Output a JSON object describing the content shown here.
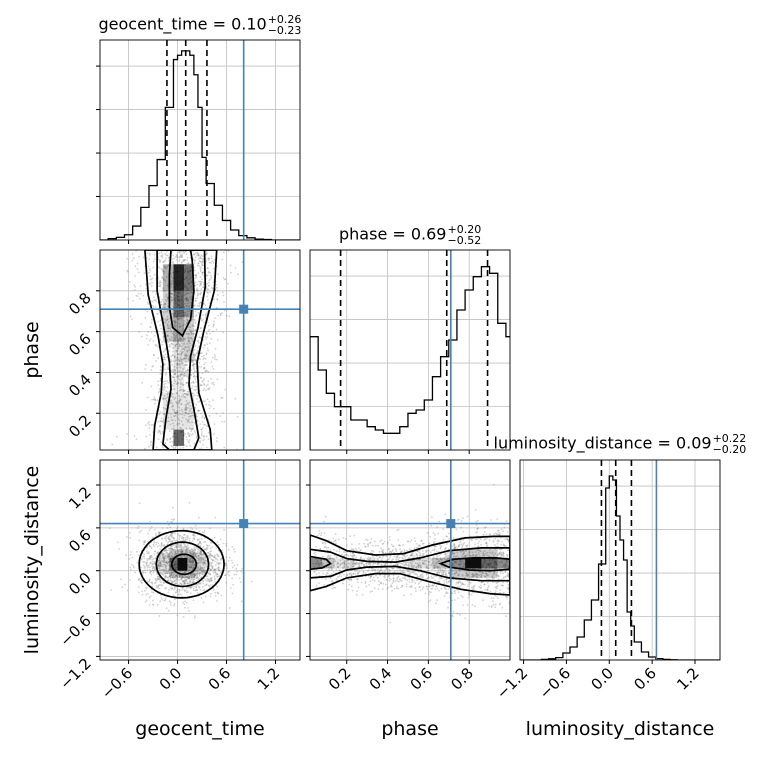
{
  "colors": {
    "truth": "#4682b4",
    "contour": "#000000",
    "grid": "#c0c0c0",
    "scatter": "#808080"
  },
  "chart_data": {
    "type": "corner",
    "parameters": [
      "geocent_time",
      "phase",
      "luminosity_distance"
    ],
    "axis_labels": {
      "geocent_time": "geocent_time",
      "phase": "phase",
      "luminosity_distance": "luminosity_distance"
    },
    "ranges": {
      "geocent_time": [
        -0.95,
        1.5
      ],
      "phase": [
        0.02,
        1.0
      ],
      "luminosity_distance": [
        -1.25,
        1.55
      ]
    },
    "truths": {
      "geocent_time": 0.81,
      "phase": 0.71,
      "luminosity_distance": 0.66
    },
    "titles": [
      {
        "param": "geocent_time",
        "text": "geocent_time = 0.10",
        "plus": "+0.26",
        "minus": "−0.23"
      },
      {
        "param": "phase",
        "text": "phase = 0.69",
        "plus": "+0.20",
        "minus": "−0.52"
      },
      {
        "param": "luminosity_distance",
        "text": "luminosity_distance = 0.09",
        "plus": "+0.22",
        "minus": "−0.20"
      }
    ],
    "quantiles": {
      "geocent_time": [
        -0.13,
        0.1,
        0.36
      ],
      "phase": [
        0.17,
        0.69,
        0.89
      ],
      "luminosity_distance": [
        -0.11,
        0.09,
        0.31
      ]
    },
    "ticks": {
      "geocent_time": {
        "values": [
          -0.6,
          0.0,
          0.6,
          1.2
        ],
        "labels": [
          "−0.6",
          "0.0",
          "0.6",
          "1.2"
        ]
      },
      "phase": {
        "values": [
          0.2,
          0.4,
          0.6,
          0.8
        ],
        "labels": [
          "0.2",
          "0.4",
          "0.6",
          "0.8"
        ]
      },
      "luminosity_distance": {
        "values": [
          -1.2,
          -0.6,
          0.0,
          0.6,
          1.2
        ],
        "labels": [
          "−1.2",
          "−0.6",
          "0.0",
          "0.6",
          "1.2"
        ]
      }
    },
    "histograms": {
      "geocent_time": {
        "edges": [
          -0.95,
          -0.85,
          -0.75,
          -0.65,
          -0.55,
          -0.45,
          -0.35,
          -0.25,
          -0.15,
          -0.05,
          0.0,
          0.05,
          0.1,
          0.15,
          0.2,
          0.25,
          0.3,
          0.35,
          0.45,
          0.55,
          0.65,
          0.75,
          0.85,
          0.95,
          1.05,
          1.15,
          1.5
        ],
        "counts": [
          0.0,
          0.3,
          0.6,
          1.2,
          3.2,
          7.5,
          12.5,
          18.5,
          30.5,
          41.5,
          42.5,
          43.5,
          43.5,
          42.5,
          38,
          30.5,
          19,
          13,
          8,
          4.5,
          2.3,
          1.0,
          0.5,
          0.2,
          0.1,
          0.0
        ],
        "ymax": 46
      },
      "phase": {
        "edges": [
          0.02,
          0.06,
          0.1,
          0.14,
          0.18,
          0.22,
          0.26,
          0.3,
          0.34,
          0.38,
          0.42,
          0.46,
          0.5,
          0.54,
          0.58,
          0.62,
          0.66,
          0.7,
          0.74,
          0.78,
          0.82,
          0.86,
          0.9,
          0.94,
          0.98,
          1.0
        ],
        "counts": [
          34,
          24,
          17,
          13,
          13,
          9,
          9,
          7,
          6,
          5,
          5,
          7,
          11,
          12,
          15,
          22,
          28,
          33,
          42,
          48,
          52,
          55,
          53,
          38,
          34
        ],
        "ymax": 60
      },
      "luminosity_distance": {
        "edges": [
          -1.25,
          -0.95,
          -0.85,
          -0.75,
          -0.65,
          -0.55,
          -0.45,
          -0.35,
          -0.25,
          -0.15,
          -0.05,
          0.0,
          0.05,
          0.1,
          0.15,
          0.2,
          0.25,
          0.3,
          0.35,
          0.45,
          0.55,
          0.65,
          0.75,
          0.85,
          0.95,
          1.55
        ],
        "counts": [
          0.0,
          0.3,
          0.6,
          1.2,
          3.5,
          6.5,
          11.5,
          20,
          30,
          48,
          86,
          92,
          90,
          72,
          60,
          50,
          24,
          17,
          9,
          4,
          1.5,
          0.7,
          0.3,
          0.1,
          0.0
        ],
        "ymax": 100
      }
    },
    "contour_levels": [
      "0.39",
      "0.86",
      "0.99"
    ],
    "grid": true
  }
}
